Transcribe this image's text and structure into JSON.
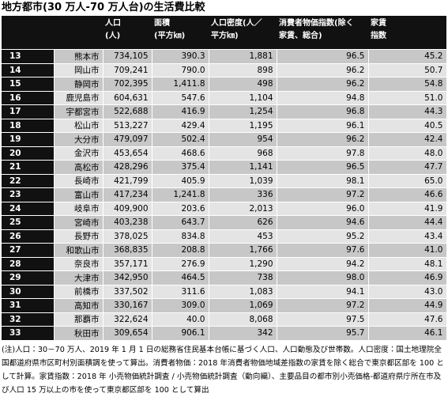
{
  "title": "地方都市(30 万人-70 万人台)の生活費比較",
  "table": {
    "header": [
      [],
      [],
      [
        "人口",
        "(人)"
      ],
      [
        "面積",
        "(平方㎞)"
      ],
      [
        "人口密度(人／",
        "平方㎞)"
      ],
      [
        "消費者物価指数(除く",
        "家賃、総合)"
      ],
      [
        "家賃",
        "指数"
      ]
    ],
    "rows": [
      [
        "13",
        "熊本市",
        "734,105",
        "390.3",
        "1,881",
        "96.5",
        "45.2"
      ],
      [
        "14",
        "岡山市",
        "709,241",
        "790.0",
        "898",
        "96.2",
        "50.7"
      ],
      [
        "15",
        "静岡市",
        "702,395",
        "1,411.8",
        "498",
        "96.2",
        "54.8"
      ],
      [
        "16",
        "鹿児島市",
        "604,631",
        "547.6",
        "1,104",
        "94.8",
        "51.0"
      ],
      [
        "17",
        "宇都宮市",
        "522,688",
        "416.9",
        "1,254",
        "96.8",
        "44.3"
      ],
      [
        "18",
        "松山市",
        "513,227",
        "429.4",
        "1,195",
        "96.1",
        "40.5"
      ],
      [
        "19",
        "大分市",
        "479,097",
        "502.4",
        "954",
        "96.2",
        "42.4"
      ],
      [
        "20",
        "金沢市",
        "453,654",
        "468.6",
        "968",
        "97.8",
        "48.0"
      ],
      [
        "21",
        "高松市",
        "428,296",
        "375.4",
        "1,141",
        "96.5",
        "47.7"
      ],
      [
        "22",
        "長崎市",
        "421,799",
        "405.9",
        "1,039",
        "98.1",
        "65.0"
      ],
      [
        "23",
        "富山市",
        "417,234",
        "1,241.8",
        "336",
        "97.2",
        "46.6"
      ],
      [
        "24",
        "岐阜市",
        "409,900",
        "203.6",
        "2,013",
        "96.0",
        "41.9"
      ],
      [
        "25",
        "宮崎市",
        "403,238",
        "643.7",
        "626",
        "94.6",
        "44.4"
      ],
      [
        "26",
        "長野市",
        "378,025",
        "834.8",
        "453",
        "95.2",
        "43.4"
      ],
      [
        "27",
        "和歌山市",
        "368,835",
        "208.8",
        "1,766",
        "97.6",
        "41.0"
      ],
      [
        "28",
        "奈良市",
        "357,171",
        "276.9",
        "1,290",
        "94.2",
        "48.1"
      ],
      [
        "29",
        "大津市",
        "342,950",
        "464.5",
        "738",
        "98.0",
        "46.9"
      ],
      [
        "30",
        "前橋市",
        "337,502",
        "311.6",
        "1,083",
        "94.1",
        "43.0"
      ],
      [
        "31",
        "高知市",
        "330,167",
        "309.0",
        "1,069",
        "97.2",
        "44.9"
      ],
      [
        "32",
        "那覇市",
        "322,624",
        "40.0",
        "8,068",
        "97.5",
        "47.6"
      ],
      [
        "33",
        "秋田市",
        "309,654",
        "906.1",
        "342",
        "95.7",
        "46.1"
      ]
    ]
  },
  "note": "(注)人口：30－70 万人、2019 年 1 月 1 日の総務省住民基本台帳に基づく人口、人口動態及び世帯数。人口密度：国土地理院全国都道府県市区町村別面積調を使って算出。消費者物価：2018 年消費者物価地域差指数の家賃を除く総合で東京都区部を 100 として計算。家賃指数：2018 年 小売物価統計調査 / 小売物価統計調査（動向編）、主要品目の都市別小売価格-都道府県庁所在市及び人口 15 万以上の市を使って東京都区部を 100 として算出"
}
